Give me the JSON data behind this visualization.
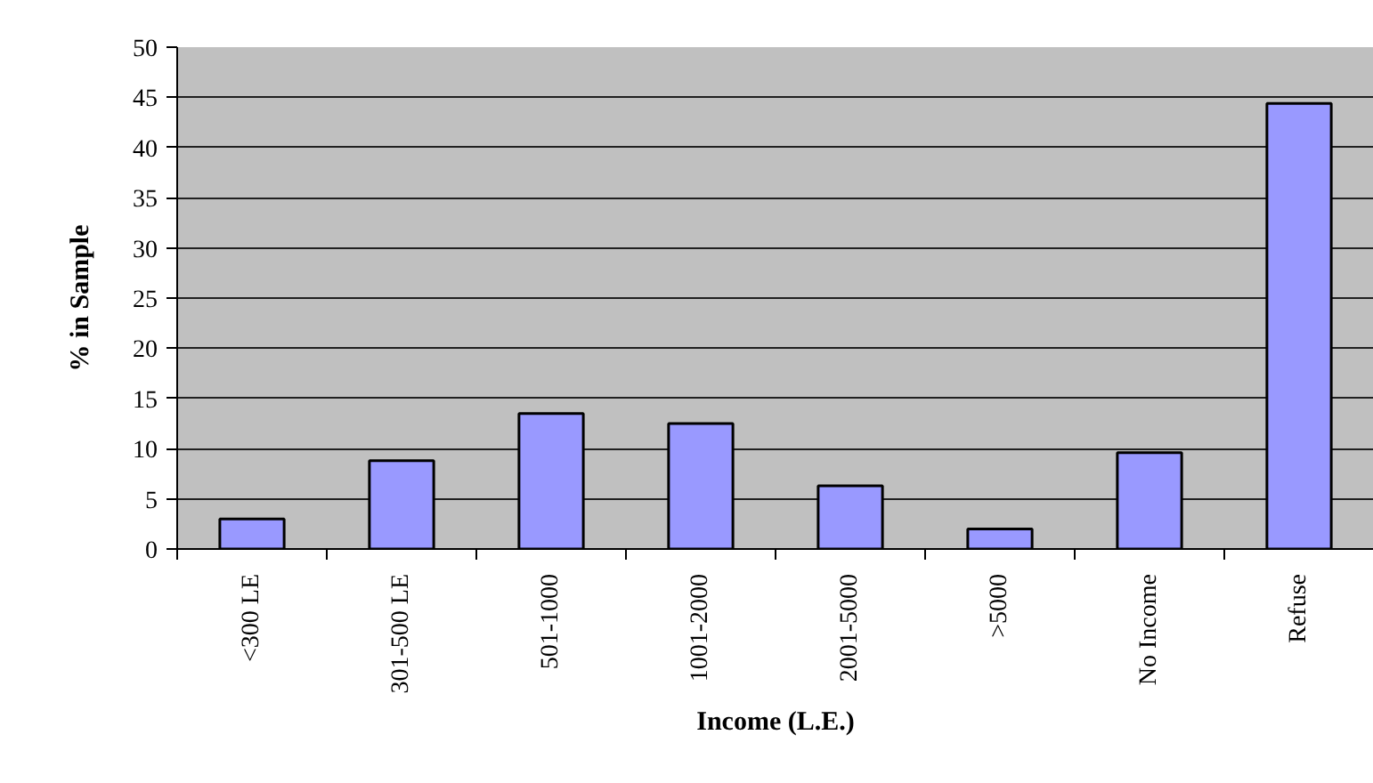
{
  "chart_data": {
    "type": "bar",
    "xlabel": "Income (L.E.)",
    "ylabel": "% in Sample",
    "categories": [
      "<300 LE",
      "301-500 LE",
      "501-1000",
      "1001-2000",
      "2001-5000",
      ">5000",
      "No Income",
      "Refuse"
    ],
    "values": [
      3.0,
      8.8,
      13.5,
      12.5,
      6.3,
      2.0,
      9.6,
      44.4
    ],
    "color": "#9999ff",
    "ylim": [
      0,
      50
    ],
    "yticks": [
      0,
      5,
      10,
      15,
      20,
      25,
      30,
      35,
      40,
      45,
      50
    ],
    "grid": "y"
  }
}
